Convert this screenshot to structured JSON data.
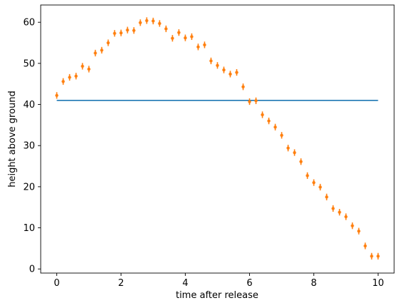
{
  "chart_data": {
    "type": "line",
    "title": "",
    "xlabel": "time after release",
    "ylabel": "height above ground",
    "xlim": [
      -0.5,
      10.5
    ],
    "ylim": [
      -1,
      64.2
    ],
    "xticks": [
      0,
      2,
      4,
      6,
      8,
      10
    ],
    "yticks": [
      0,
      10,
      20,
      30,
      40,
      50,
      60
    ],
    "grid": false,
    "series": [
      {
        "kind": "line",
        "color": "#1f77b4",
        "x": [
          0,
          10
        ],
        "y": [
          41,
          41
        ]
      },
      {
        "kind": "errorbar",
        "color": "#ff7f0e",
        "error": 0.8,
        "x": [
          0,
          0.2,
          0.4,
          0.6,
          0.8,
          1.0,
          1.2,
          1.4,
          1.6,
          1.8,
          2.0,
          2.2,
          2.4,
          2.6,
          2.8,
          3.0,
          3.2,
          3.4,
          3.6,
          3.8,
          4.0,
          4.2,
          4.4,
          4.6,
          4.8,
          5.0,
          5.2,
          5.4,
          5.6,
          5.8,
          6.0,
          6.2,
          6.4,
          6.6,
          6.8,
          7.0,
          7.2,
          7.4,
          7.6,
          7.8,
          8.0,
          8.2,
          8.4,
          8.6,
          8.8,
          9.0,
          9.2,
          9.4,
          9.6,
          9.8,
          10.0
        ],
        "y": [
          42.2,
          45.6,
          46.6,
          46.9,
          49.3,
          48.6,
          52.5,
          53.2,
          55.0,
          57.3,
          57.4,
          58.1,
          58.0,
          59.9,
          60.4,
          60.3,
          59.7,
          58.4,
          56.1,
          57.5,
          56.2,
          56.5,
          54.0,
          54.5,
          50.6,
          49.5,
          48.4,
          47.4,
          47.8,
          44.3,
          40.7,
          40.9,
          37.5,
          36.0,
          34.5,
          32.5,
          29.4,
          28.3,
          26.1,
          22.7,
          21.0,
          19.9,
          17.5,
          14.7,
          13.8,
          12.7,
          10.5,
          9.2,
          5.6,
          3.1,
          3.1
        ]
      }
    ]
  }
}
